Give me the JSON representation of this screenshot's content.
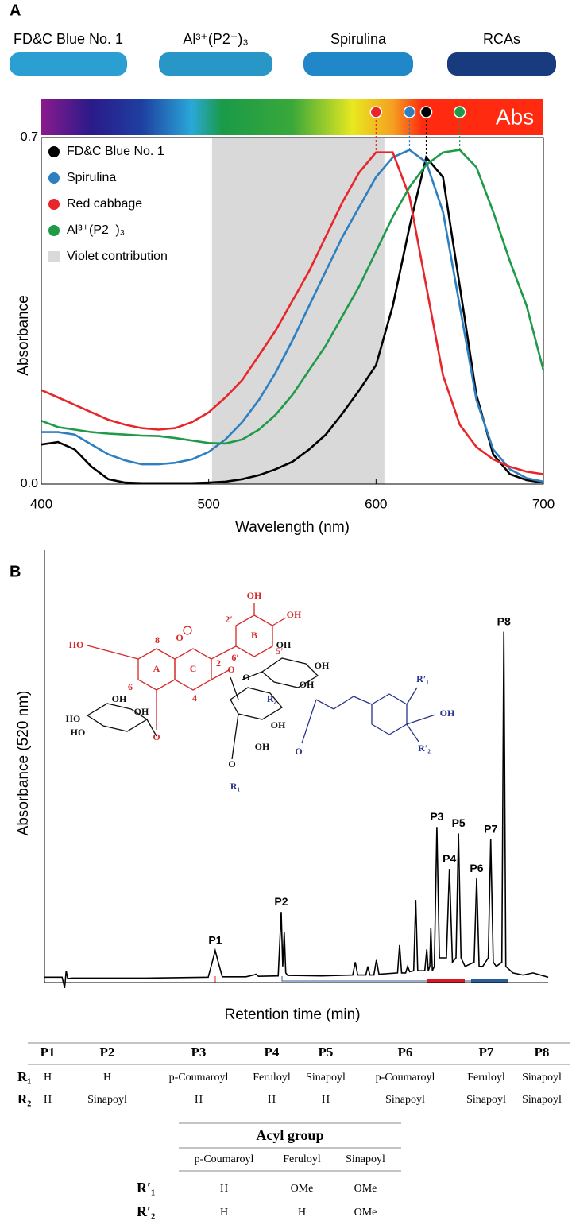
{
  "panels": [
    "A",
    "B"
  ],
  "swatches": [
    {
      "label": "FD&C Blue No. 1",
      "color": "#2b9fd1"
    },
    {
      "label": "Al³⁺(P2⁻)₃",
      "color": "#2897c7"
    },
    {
      "label": "Spirulina",
      "color": "#2088c8"
    },
    {
      "label": "RCAs",
      "color": "#173b7e"
    }
  ],
  "spectrum_label": "Abs",
  "chart_data": [
    {
      "type": "line",
      "xlabel": "Wavelength (nm)",
      "ylabel": "Absorbance",
      "xlim": [
        400,
        700
      ],
      "xticks": [
        400,
        500,
        600,
        700
      ],
      "ylim": [
        0,
        0.7
      ],
      "yticks": [
        {
          "value": 0,
          "label": "0.0"
        },
        0.7
      ],
      "shaded_region": {
        "name": "Violet contribution",
        "color": "#d9d9d9",
        "range": [
          502,
          605
        ]
      },
      "legend": "upper left",
      "x": [
        400,
        410,
        420,
        430,
        440,
        450,
        460,
        470,
        480,
        490,
        500,
        510,
        520,
        530,
        540,
        550,
        560,
        570,
        580,
        590,
        600,
        610,
        620,
        630,
        640,
        650,
        660,
        670,
        680,
        690,
        700
      ],
      "series": [
        {
          "name": "FD&C Blue No. 1",
          "color": "#000000",
          "values": [
            0.08,
            0.085,
            0.07,
            0.035,
            0.01,
            0.003,
            0.002,
            0.002,
            0.002,
            0.002,
            0.003,
            0.005,
            0.01,
            0.018,
            0.03,
            0.045,
            0.07,
            0.1,
            0.143,
            0.19,
            0.24,
            0.36,
            0.52,
            0.66,
            0.62,
            0.4,
            0.18,
            0.06,
            0.02,
            0.008,
            0.003
          ]
        },
        {
          "name": "Spirulina",
          "color": "#2e7fc0",
          "values": [
            0.105,
            0.105,
            0.1,
            0.08,
            0.06,
            0.048,
            0.04,
            0.04,
            0.043,
            0.05,
            0.065,
            0.09,
            0.125,
            0.17,
            0.225,
            0.29,
            0.36,
            0.43,
            0.5,
            0.56,
            0.62,
            0.66,
            0.675,
            0.65,
            0.55,
            0.36,
            0.17,
            0.07,
            0.03,
            0.012,
            0.005
          ]
        },
        {
          "name": "Red cabbage",
          "color": "#e8262a",
          "values": [
            0.19,
            0.175,
            0.16,
            0.145,
            0.13,
            0.12,
            0.113,
            0.11,
            0.113,
            0.125,
            0.145,
            0.175,
            0.21,
            0.26,
            0.31,
            0.37,
            0.43,
            0.5,
            0.57,
            0.63,
            0.67,
            0.67,
            0.58,
            0.4,
            0.22,
            0.12,
            0.075,
            0.05,
            0.035,
            0.025,
            0.02
          ]
        },
        {
          "name": "Al³⁺(P2⁻)₃",
          "color": "#1f9a48",
          "values": [
            0.128,
            0.115,
            0.11,
            0.105,
            0.102,
            0.1,
            0.098,
            0.097,
            0.093,
            0.088,
            0.083,
            0.082,
            0.09,
            0.11,
            0.14,
            0.18,
            0.23,
            0.28,
            0.34,
            0.4,
            0.47,
            0.54,
            0.6,
            0.645,
            0.67,
            0.675,
            0.64,
            0.55,
            0.45,
            0.36,
            0.23
          ]
        }
      ]
    },
    {
      "type": "line",
      "xlabel": "Retention time (min)",
      "ylabel": "Absorbance (520 nm)",
      "xlim": [
        0,
        100
      ],
      "ylim": [
        0,
        100
      ],
      "peak_labels": [
        "P1",
        "P2",
        "P3",
        "P4",
        "P5",
        "P6",
        "P7",
        "P8"
      ],
      "x": [
        0,
        3.5,
        4.0,
        4.3,
        4.6,
        5.5,
        20,
        32.5,
        33.3,
        33.9,
        34.5,
        35.3,
        40,
        41.5,
        42,
        42.5,
        46.4,
        47.0,
        47.3,
        47.6,
        47.9,
        48.3,
        55,
        61.2,
        61.7,
        62.2,
        63.8,
        64.2,
        64.6,
        65.4,
        65.9,
        66.4,
        70.1,
        70.5,
        70.9,
        71.7,
        72.1,
        72.5,
        73.3,
        73.7,
        74.1,
        75.5,
        75.9,
        76.2,
        76.5,
        76.7,
        77.0,
        77.4,
        77.9,
        78.4,
        79.8,
        80.4,
        81.0,
        81.7,
        82.2,
        82.7,
        83.5,
        85.3,
        85.8,
        86.3,
        87.0,
        88.1,
        88.6,
        89.1,
        89.7,
        90.8,
        91.2,
        91.6,
        93,
        95,
        97,
        100
      ],
      "series": [
        {
          "name": "Absorbance",
          "color": "#000000",
          "values": [
            0.5,
            0.5,
            -2,
            2,
            0.2,
            0.3,
            0.3,
            0.5,
            4,
            6.7,
            4,
            0.6,
            0.6,
            1,
            1.2,
            0.7,
            0.8,
            15.7,
            3,
            11,
            1.5,
            0.9,
            0.8,
            1,
            4,
            1,
            1,
            3,
            1,
            1,
            4.5,
            1.2,
            1.5,
            8,
            1.5,
            1.5,
            3,
            1.8,
            2,
            18.5,
            2,
            2,
            7,
            2,
            3,
            12,
            2,
            3,
            35.5,
            5,
            5,
            25.7,
            4,
            5,
            34,
            5,
            3,
            4,
            23.5,
            3,
            3,
            5,
            32.6,
            4,
            3,
            4,
            81,
            3,
            1.5,
            1,
            1.5,
            0.5
          ]
        }
      ]
    }
  ],
  "structure": {
    "labels": [
      "OH",
      "OH",
      "2′",
      "B",
      "5′",
      "6′",
      "HO",
      "8",
      "O",
      "A",
      "C",
      "2",
      "6",
      "4",
      "O",
      "O",
      "OH",
      "OH",
      "OH",
      "HO",
      "HO",
      "OH",
      "OH",
      "OH",
      "OH",
      "O",
      "R₂",
      "O",
      "R₁",
      "R′₁",
      "OH",
      "R′₂",
      "O"
    ]
  },
  "table": {
    "header": [
      "P1",
      "P2",
      "P3",
      "P4",
      "P5",
      "P6",
      "P7",
      "P8"
    ],
    "rows": [
      [
        "R₁",
        "H",
        "H",
        "p-Coumaroyl",
        "Feruloyl",
        "Sinapoyl",
        "p-Coumaroyl",
        "Feruloyl",
        "Sinapoyl"
      ],
      [
        "R₂",
        "H",
        "Sinapoyl",
        "H",
        "H",
        "H",
        "Sinapoyl",
        "Sinapoyl",
        "Sinapoyl"
      ]
    ]
  },
  "acyl_table": {
    "title": "Acyl group",
    "header": [
      "p-Coumaroyl",
      "Feruloyl",
      "Sinapoyl"
    ],
    "rows": [
      [
        "R′₁",
        "H",
        "OMe",
        "OMe"
      ],
      [
        "R′₂",
        "H",
        "H",
        "OMe"
      ]
    ]
  }
}
